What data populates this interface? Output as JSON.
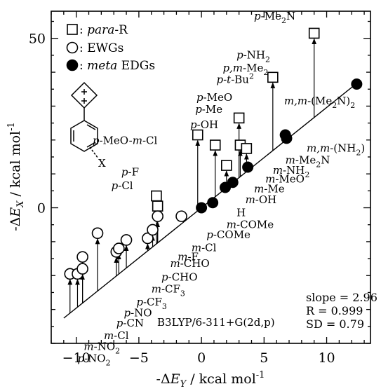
{
  "chart_data": {
    "type": "scatter",
    "x_ticks": [
      -10,
      -5,
      0,
      5,
      10
    ],
    "y_ticks": [
      0,
      50
    ],
    "xlim": [
      -12,
      13.5
    ],
    "ylim": [
      -40,
      58
    ],
    "xlabel": "-ΔE",
    "xlabel_sub": "Y",
    "xlabel_unit": " / kcal mol",
    "xlabel_sup": "-1",
    "ylabel": "-ΔE",
    "ylabel_sub": "X",
    "ylabel_unit": " / kcal mol",
    "ylabel_sup": "-1",
    "legend": [
      {
        "marker": "square",
        "prefix": " : ",
        "italic": "para",
        "suffix": "-R"
      },
      {
        "marker": "circle-open",
        "prefix": " : EWGs",
        "italic": "",
        "suffix": ""
      },
      {
        "marker": "circle-filled",
        "prefix": " : ",
        "italic": "meta",
        "suffix": " EDGs"
      }
    ],
    "fit_line": {
      "slope": 2.96,
      "intercept": 0,
      "x_range": [
        -11,
        12.5
      ]
    },
    "stats": [
      "slope = 2.96",
      "R = 0.999",
      "SD = 0.79"
    ],
    "method": "B3LYP/6-311+G(2d,p)",
    "para_series": [
      {
        "x": 9.0,
        "y": 51.5
      },
      {
        "x": 5.7,
        "y": 38.5
      },
      {
        "x": 3.0,
        "y": 26.5
      },
      {
        "x": 1.1,
        "y": 18.5
      },
      {
        "x": 3.1,
        "y": 18.5
      },
      {
        "x": 3.6,
        "y": 17.5
      },
      {
        "x": -0.3,
        "y": 21.5
      },
      {
        "x": 2.0,
        "y": 12.5
      },
      {
        "x": -3.6,
        "y": 3.5
      },
      {
        "x": -3.5,
        "y": 0.5
      }
    ],
    "ewg_series": [
      {
        "x": -10.5,
        "y": -19.5
      },
      {
        "x": -9.9,
        "y": -19.5
      },
      {
        "x": -9.5,
        "y": -18.0
      },
      {
        "x": -9.5,
        "y": -14.5
      },
      {
        "x": -8.3,
        "y": -7.5
      },
      {
        "x": -6.8,
        "y": -13.0
      },
      {
        "x": -6.6,
        "y": -12.0
      },
      {
        "x": -6.0,
        "y": -9.5
      },
      {
        "x": -4.3,
        "y": -9.0
      },
      {
        "x": -3.9,
        "y": -6.5
      },
      {
        "x": -3.5,
        "y": -2.5
      },
      {
        "x": -1.6,
        "y": -2.5
      }
    ],
    "meta_edg_series": [
      {
        "x": 0.0,
        "y": 0.0
      },
      {
        "x": 0.9,
        "y": 1.5
      },
      {
        "x": 1.9,
        "y": 6.0
      },
      {
        "x": 2.5,
        "y": 7.5
      },
      {
        "x": 3.7,
        "y": 12.0
      },
      {
        "x": 6.7,
        "y": 21.5
      },
      {
        "x": 6.8,
        "y": 20.5
      },
      {
        "x": 12.4,
        "y": 36.5
      }
    ],
    "labels": [
      {
        "parts": [
          [
            "i",
            "p"
          ],
          [
            "n",
            "-Me"
          ],
          [
            "sub",
            "2"
          ],
          [
            "n",
            "N"
          ]
        ],
        "x": 4.2,
        "y": 55.5
      },
      {
        "parts": [
          [
            "i",
            "p"
          ],
          [
            "n",
            "-NH"
          ],
          [
            "sub",
            "2"
          ]
        ],
        "x": 2.8,
        "y": 44.0
      },
      {
        "parts": [
          [
            "i",
            "p,m"
          ],
          [
            "n",
            "-Me"
          ],
          [
            "sub",
            "2"
          ]
        ],
        "x": 1.7,
        "y": 40.2
      },
      {
        "parts": [
          [
            "i",
            "p-t"
          ],
          [
            "n",
            "-Bu"
          ],
          [
            "sup",
            "2"
          ]
        ],
        "x": 1.2,
        "y": 36.8
      },
      {
        "parts": [
          [
            "i",
            "p"
          ],
          [
            "n",
            "-MeO"
          ]
        ],
        "x": -0.4,
        "y": 31.5
      },
      {
        "parts": [
          [
            "i",
            "p"
          ],
          [
            "n",
            "-Me"
          ]
        ],
        "x": -0.5,
        "y": 28.0
      },
      {
        "parts": [
          [
            "i",
            "p"
          ],
          [
            "n",
            "-OH"
          ]
        ],
        "x": -0.9,
        "y": 23.5
      },
      {
        "parts": [
          [
            "i",
            "p"
          ],
          [
            "n",
            "-MeO-"
          ],
          [
            "i",
            "m"
          ],
          [
            "n",
            "-Cl"
          ]
        ],
        "x": -8.7,
        "y": 18.8
      },
      {
        "parts": [
          [
            "i",
            "p"
          ],
          [
            "n",
            "-F"
          ]
        ],
        "x": -6.4,
        "y": 9.5
      },
      {
        "parts": [
          [
            "i",
            "p"
          ],
          [
            "n",
            "-Cl"
          ]
        ],
        "x": -7.2,
        "y": 5.5
      },
      {
        "parts": [
          [
            "i",
            "m,m"
          ],
          [
            "n",
            "-(Me"
          ],
          [
            "sub",
            "2"
          ],
          [
            "n",
            "N)"
          ],
          [
            "sub",
            "2"
          ]
        ],
        "x": 6.6,
        "y": 30.5
      },
      {
        "parts": [
          [
            "i",
            "m,m"
          ],
          [
            "n",
            "-(NH"
          ],
          [
            "sub",
            "2"
          ],
          [
            "n",
            ")"
          ]
        ],
        "x": 8.4,
        "y": 16.5
      },
      {
        "parts": [
          [
            "i",
            "m"
          ],
          [
            "n",
            "-Me"
          ],
          [
            "sub",
            "2"
          ],
          [
            "n",
            "N"
          ]
        ],
        "x": 6.7,
        "y": 13.0
      },
      {
        "parts": [
          [
            "i",
            "m"
          ],
          [
            "n",
            "-NH"
          ],
          [
            "sub",
            "2"
          ]
        ],
        "x": 5.7,
        "y": 10.0
      },
      {
        "parts": [
          [
            "i",
            "m"
          ],
          [
            "n",
            "-MeO"
          ]
        ],
        "x": 5.1,
        "y": 7.4
      },
      {
        "parts": [
          [
            "i",
            "m"
          ],
          [
            "n",
            "-Me"
          ]
        ],
        "x": 4.2,
        "y": 4.6
      },
      {
        "parts": [
          [
            "i",
            "m"
          ],
          [
            "n",
            "-OH"
          ]
        ],
        "x": 3.5,
        "y": 1.3
      },
      {
        "parts": [
          [
            "n",
            "H"
          ]
        ],
        "x": 2.8,
        "y": -2.5
      },
      {
        "parts": [
          [
            "i",
            "m"
          ],
          [
            "n",
            "-COMe"
          ]
        ],
        "x": 2.0,
        "y": -6.0
      },
      {
        "parts": [
          [
            "i",
            "p"
          ],
          [
            "n",
            "-COMe"
          ]
        ],
        "x": 0.4,
        "y": -9.0
      },
      {
        "parts": [
          [
            "i",
            "m"
          ],
          [
            "n",
            "-Cl"
          ]
        ],
        "x": -0.8,
        "y": -12.8
      },
      {
        "parts": [
          [
            "i",
            "m"
          ],
          [
            "n",
            "-F"
          ]
        ],
        "x": -1.9,
        "y": -15.5
      },
      {
        "parts": [
          [
            "i",
            "m"
          ],
          [
            "n",
            "-CHO"
          ]
        ],
        "x": -2.5,
        "y": -17.5
      },
      {
        "parts": [
          [
            "i",
            "p"
          ],
          [
            "n",
            "-CHO"
          ]
        ],
        "x": -3.2,
        "y": -21.5
      },
      {
        "parts": [
          [
            "i",
            "m"
          ],
          [
            "n",
            "-CF"
          ],
          [
            "sub",
            "3"
          ]
        ],
        "x": -4.0,
        "y": -25.0
      },
      {
        "parts": [
          [
            "i",
            "p"
          ],
          [
            "n",
            "-CF"
          ],
          [
            "sub",
            "3"
          ]
        ],
        "x": -5.2,
        "y": -28.8
      },
      {
        "parts": [
          [
            "i",
            "p"
          ],
          [
            "n",
            "-NO"
          ]
        ],
        "x": -6.2,
        "y": -32.0
      },
      {
        "parts": [
          [
            "i",
            "p"
          ],
          [
            "n",
            "-CN"
          ]
        ],
        "x": -6.8,
        "y": -35.0
      },
      {
        "parts": [
          [
            "i",
            "m"
          ],
          [
            "n",
            "-Cl"
          ]
        ],
        "x": -7.8,
        "y": -38.8
      },
      {
        "parts": [
          [
            "i",
            "m"
          ],
          [
            "n",
            "-NO"
          ],
          [
            "sub",
            "2"
          ]
        ],
        "x": -9.4,
        "y": -42.0
      },
      {
        "parts": [
          [
            "i",
            "p"
          ],
          [
            "n",
            "-NO"
          ],
          [
            "sub",
            "2"
          ]
        ],
        "x": -9.9,
        "y": -45.5
      }
    ]
  }
}
